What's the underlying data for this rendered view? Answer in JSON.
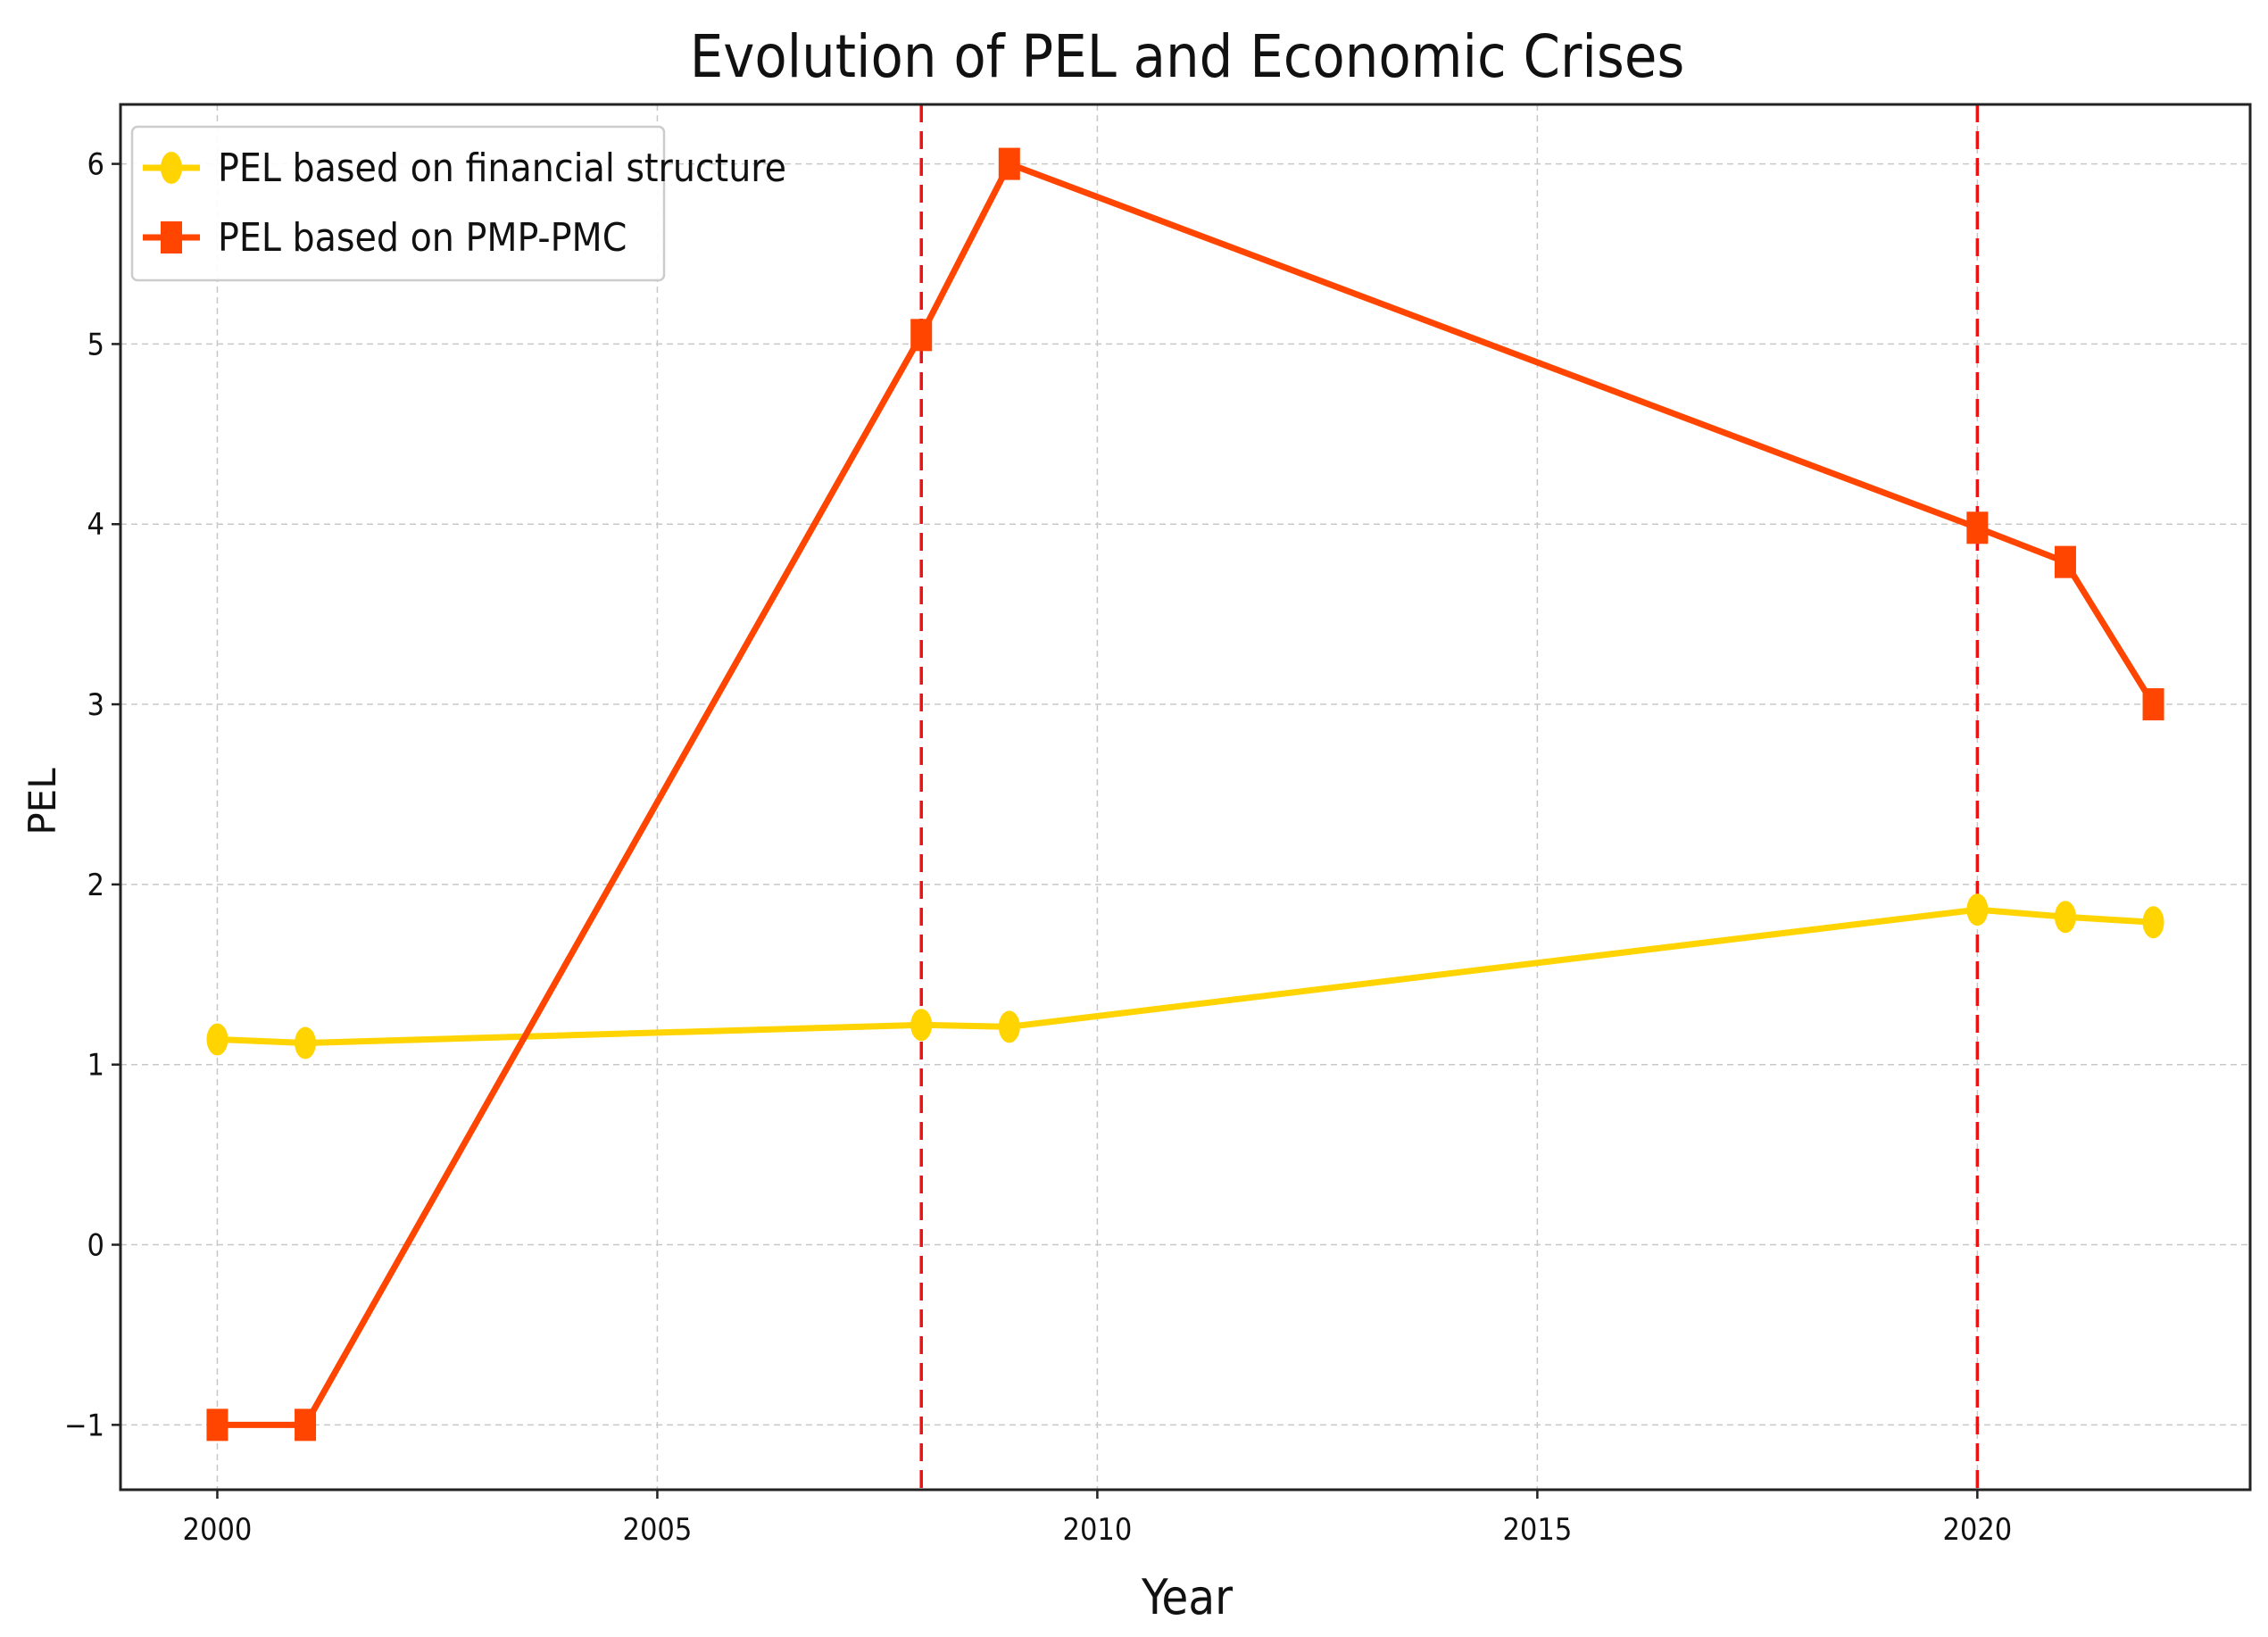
{
  "chart_data": {
    "type": "line",
    "title": "Evolution of PEL and Economic Crises",
    "xlabel": "Year",
    "ylabel": "PEL",
    "xlim": [
      1998.9,
      2023.1
    ],
    "ylim": [
      -1.36,
      6.33
    ],
    "xticks": [
      2000,
      2005,
      2010,
      2015,
      2020
    ],
    "yticks": [
      -1,
      0,
      1,
      2,
      3,
      4,
      5,
      6
    ],
    "x_tick_labels": [
      "2000",
      "2005",
      "2010",
      "2015",
      "2020"
    ],
    "y_tick_labels": [
      "−1",
      "0",
      "1",
      "2",
      "3",
      "4",
      "5",
      "6"
    ],
    "grid": true,
    "legend_position": "upper-left",
    "vlines": [
      {
        "x": 2008,
        "color": "#ee1111",
        "style": "dashed"
      },
      {
        "x": 2020,
        "color": "#ee1111",
        "style": "dashed"
      }
    ],
    "series": [
      {
        "name": "PEL based on financial structure",
        "color": "#ffd400",
        "marker": "circle",
        "x": [
          2000,
          2001,
          2008,
          2009,
          2020,
          2021,
          2022
        ],
        "values": [
          1.14,
          1.12,
          1.22,
          1.21,
          1.86,
          1.82,
          1.79
        ]
      },
      {
        "name": "PEL based on PMP-PMC",
        "color": "#ff4500",
        "marker": "square",
        "x": [
          2000,
          2001,
          2008,
          2009,
          2020,
          2021,
          2022
        ],
        "values": [
          -1.0,
          -1.0,
          5.05,
          6.0,
          3.98,
          3.79,
          3.0
        ]
      }
    ]
  }
}
